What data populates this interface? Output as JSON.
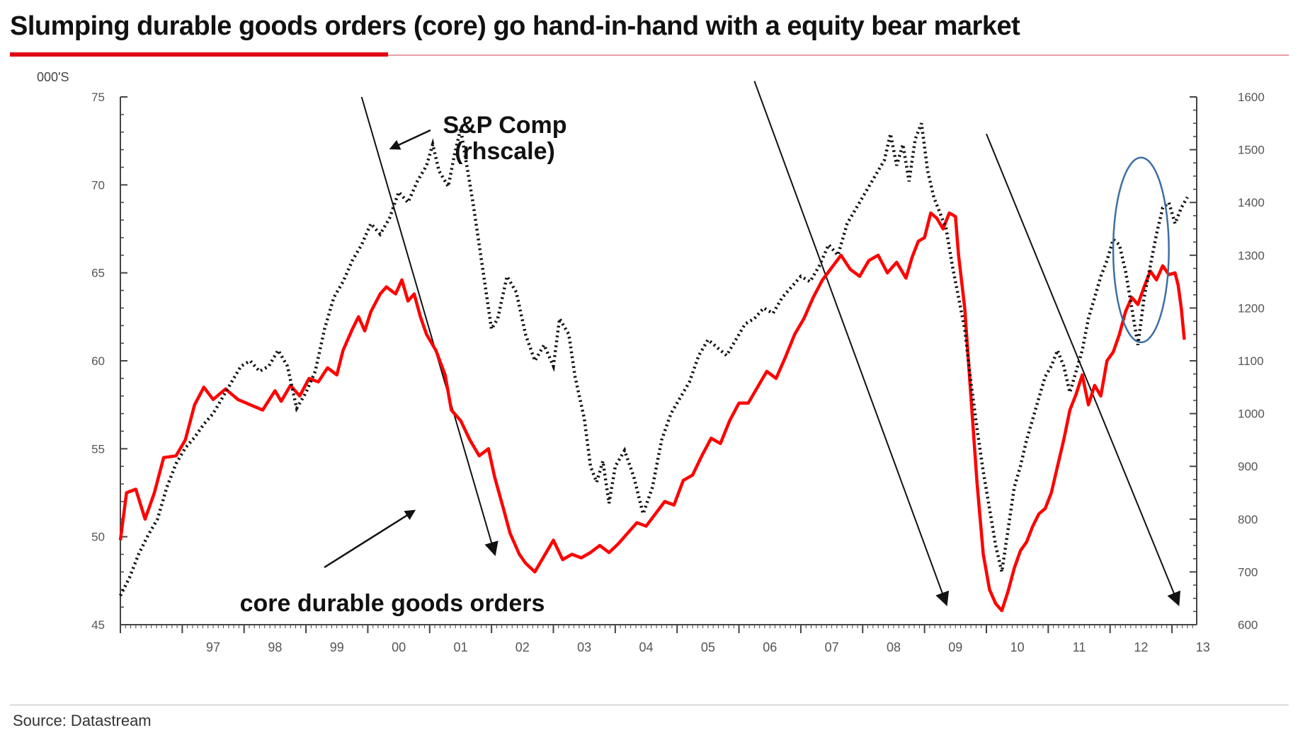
{
  "title": "Slumping durable goods orders (core) go hand-in-hand with a equity bear market",
  "source": "Source: Datastream",
  "colors": {
    "core_durable_goods": "#ff0000",
    "sp_comp": "#111111",
    "highlight_ellipse": "#3d6fa3",
    "title_rule": "#e30613"
  },
  "chart_data": {
    "type": "line",
    "left_axis": {
      "unit_label": "000'S",
      "range": [
        45,
        75
      ],
      "ticks": [
        "75",
        "70",
        "65",
        "60",
        "55",
        "50",
        "45"
      ]
    },
    "right_axis": {
      "range": [
        600,
        1600
      ],
      "ticks": [
        "1600",
        "1500",
        "1400",
        "1300",
        "1200",
        "1100",
        "1000",
        "900",
        "800",
        "700",
        "600"
      ]
    },
    "x_axis": {
      "range": [
        1996.0,
        2013.4
      ],
      "ticks": [
        "97",
        "98",
        "99",
        "00",
        "01",
        "02",
        "03",
        "04",
        "05",
        "06",
        "07",
        "08",
        "09",
        "10",
        "11",
        "12",
        "13"
      ],
      "tick_years": [
        1997,
        1998,
        1999,
        2000,
        2001,
        2002,
        2003,
        2004,
        2005,
        2006,
        2007,
        2008,
        2009,
        2010,
        2011,
        2012,
        2013
      ]
    },
    "grid": false,
    "series": [
      {
        "name": "core durable goods orders",
        "axis": "left",
        "style": "solid",
        "points": [
          [
            1996.0,
            49.8
          ],
          [
            1996.1,
            52.5
          ],
          [
            1996.25,
            52.7
          ],
          [
            1996.4,
            51.0
          ],
          [
            1996.55,
            52.5
          ],
          [
            1996.7,
            54.5
          ],
          [
            1996.9,
            54.6
          ],
          [
            1997.05,
            55.5
          ],
          [
            1997.2,
            57.5
          ],
          [
            1997.35,
            58.5
          ],
          [
            1997.5,
            57.8
          ],
          [
            1997.7,
            58.4
          ],
          [
            1997.9,
            57.8
          ],
          [
            1998.1,
            57.5
          ],
          [
            1998.3,
            57.2
          ],
          [
            1998.5,
            58.3
          ],
          [
            1998.6,
            57.7
          ],
          [
            1998.75,
            58.6
          ],
          [
            1998.9,
            58.0
          ],
          [
            1999.05,
            59.0
          ],
          [
            1999.2,
            58.8
          ],
          [
            1999.35,
            59.6
          ],
          [
            1999.5,
            59.2
          ],
          [
            1999.6,
            60.6
          ],
          [
            1999.75,
            61.8
          ],
          [
            1999.85,
            62.5
          ],
          [
            1999.95,
            61.7
          ],
          [
            2000.05,
            62.8
          ],
          [
            2000.2,
            63.8
          ],
          [
            2000.3,
            64.2
          ],
          [
            2000.45,
            63.8
          ],
          [
            2000.55,
            64.6
          ],
          [
            2000.65,
            63.4
          ],
          [
            2000.75,
            63.8
          ],
          [
            2000.85,
            62.5
          ],
          [
            2000.95,
            61.5
          ],
          [
            2001.1,
            60.6
          ],
          [
            2001.25,
            59.2
          ],
          [
            2001.35,
            57.2
          ],
          [
            2001.5,
            56.6
          ],
          [
            2001.65,
            55.5
          ],
          [
            2001.8,
            54.6
          ],
          [
            2001.95,
            55.0
          ],
          [
            2002.05,
            53.4
          ],
          [
            2002.2,
            51.5
          ],
          [
            2002.3,
            50.2
          ],
          [
            2002.45,
            49.0
          ],
          [
            2002.55,
            48.5
          ],
          [
            2002.7,
            48.0
          ],
          [
            2002.85,
            48.9
          ],
          [
            2003.0,
            49.8
          ],
          [
            2003.15,
            48.7
          ],
          [
            2003.3,
            49.0
          ],
          [
            2003.45,
            48.8
          ],
          [
            2003.6,
            49.1
          ],
          [
            2003.75,
            49.5
          ],
          [
            2003.9,
            49.1
          ],
          [
            2004.05,
            49.6
          ],
          [
            2004.2,
            50.2
          ],
          [
            2004.35,
            50.8
          ],
          [
            2004.5,
            50.6
          ],
          [
            2004.65,
            51.3
          ],
          [
            2004.8,
            52.0
          ],
          [
            2004.95,
            51.8
          ],
          [
            2005.1,
            53.2
          ],
          [
            2005.25,
            53.5
          ],
          [
            2005.4,
            54.6
          ],
          [
            2005.55,
            55.6
          ],
          [
            2005.7,
            55.3
          ],
          [
            2005.85,
            56.6
          ],
          [
            2006.0,
            57.6
          ],
          [
            2006.15,
            57.6
          ],
          [
            2006.3,
            58.5
          ],
          [
            2006.45,
            59.4
          ],
          [
            2006.6,
            59.0
          ],
          [
            2006.75,
            60.2
          ],
          [
            2006.9,
            61.5
          ],
          [
            2007.05,
            62.4
          ],
          [
            2007.2,
            63.6
          ],
          [
            2007.35,
            64.6
          ],
          [
            2007.5,
            65.3
          ],
          [
            2007.65,
            66.0
          ],
          [
            2007.8,
            65.2
          ],
          [
            2007.95,
            64.8
          ],
          [
            2008.1,
            65.7
          ],
          [
            2008.25,
            66.0
          ],
          [
            2008.4,
            65.0
          ],
          [
            2008.55,
            65.6
          ],
          [
            2008.7,
            64.7
          ],
          [
            2008.8,
            65.9
          ],
          [
            2008.9,
            66.8
          ],
          [
            2009.0,
            67.0
          ],
          [
            2009.1,
            68.4
          ],
          [
            2009.2,
            68.1
          ],
          [
            2009.3,
            67.5
          ],
          [
            2009.4,
            68.4
          ],
          [
            2009.5,
            68.2
          ],
          [
            2009.55,
            66.0
          ],
          [
            2009.65,
            63.0
          ],
          [
            2009.75,
            58.0
          ],
          [
            2009.85,
            53.0
          ],
          [
            2009.95,
            49.0
          ],
          [
            2010.05,
            47.0
          ],
          [
            2010.15,
            46.2
          ],
          [
            2010.25,
            45.8
          ],
          [
            2010.35,
            46.9
          ],
          [
            2010.45,
            48.2
          ],
          [
            2010.55,
            49.2
          ],
          [
            2010.65,
            49.7
          ],
          [
            2010.75,
            50.6
          ],
          [
            2010.85,
            51.3
          ],
          [
            2010.95,
            51.6
          ],
          [
            2011.05,
            52.5
          ],
          [
            2011.15,
            54.0
          ],
          [
            2011.25,
            55.5
          ],
          [
            2011.35,
            57.2
          ],
          [
            2011.45,
            58.1
          ],
          [
            2011.55,
            59.2
          ],
          [
            2011.65,
            57.5
          ],
          [
            2011.75,
            58.6
          ],
          [
            2011.85,
            58.0
          ],
          [
            2011.95,
            60.0
          ],
          [
            2012.05,
            60.5
          ],
          [
            2012.15,
            61.5
          ],
          [
            2012.25,
            62.8
          ],
          [
            2012.35,
            63.6
          ],
          [
            2012.45,
            63.2
          ],
          [
            2012.55,
            64.2
          ],
          [
            2012.65,
            65.1
          ],
          [
            2012.75,
            64.6
          ],
          [
            2012.85,
            65.4
          ],
          [
            2012.95,
            64.9
          ],
          [
            2013.05,
            65.0
          ],
          [
            2013.1,
            64.3
          ],
          [
            2013.15,
            63.0
          ],
          [
            2013.2,
            61.2
          ]
        ]
      },
      {
        "name": "S&P Comp (rhscale)",
        "axis": "right",
        "style": "dotted",
        "points": [
          [
            1996.0,
            655
          ],
          [
            1996.15,
            690
          ],
          [
            1996.3,
            735
          ],
          [
            1996.45,
            770
          ],
          [
            1996.6,
            800
          ],
          [
            1996.75,
            860
          ],
          [
            1996.9,
            905
          ],
          [
            1997.05,
            935
          ],
          [
            1997.2,
            955
          ],
          [
            1997.35,
            980
          ],
          [
            1997.5,
            1000
          ],
          [
            1997.65,
            1030
          ],
          [
            1997.8,
            1060
          ],
          [
            1997.95,
            1090
          ],
          [
            1998.1,
            1100
          ],
          [
            1998.25,
            1080
          ],
          [
            1998.4,
            1090
          ],
          [
            1998.55,
            1120
          ],
          [
            1998.7,
            1090
          ],
          [
            1998.85,
            1010
          ],
          [
            1999.0,
            1040
          ],
          [
            1999.15,
            1080
          ],
          [
            1999.3,
            1160
          ],
          [
            1999.45,
            1220
          ],
          [
            1999.6,
            1250
          ],
          [
            1999.75,
            1290
          ],
          [
            1999.9,
            1320
          ],
          [
            2000.05,
            1360
          ],
          [
            2000.2,
            1340
          ],
          [
            2000.35,
            1370
          ],
          [
            2000.5,
            1420
          ],
          [
            2000.65,
            1400
          ],
          [
            2000.8,
            1440
          ],
          [
            2000.95,
            1470
          ],
          [
            2001.05,
            1510
          ],
          [
            2001.15,
            1460
          ],
          [
            2001.3,
            1430
          ],
          [
            2001.4,
            1490
          ],
          [
            2001.5,
            1540
          ],
          [
            2001.6,
            1470
          ],
          [
            2001.7,
            1400
          ],
          [
            2001.8,
            1320
          ],
          [
            2001.9,
            1240
          ],
          [
            2002.0,
            1160
          ],
          [
            2002.1,
            1180
          ],
          [
            2002.25,
            1260
          ],
          [
            2002.4,
            1230
          ],
          [
            2002.55,
            1150
          ],
          [
            2002.7,
            1100
          ],
          [
            2002.85,
            1130
          ],
          [
            2003.0,
            1090
          ],
          [
            2003.1,
            1180
          ],
          [
            2003.25,
            1150
          ],
          [
            2003.35,
            1070
          ],
          [
            2003.5,
            990
          ],
          [
            2003.6,
            900
          ],
          [
            2003.7,
            870
          ],
          [
            2003.8,
            910
          ],
          [
            2003.9,
            830
          ],
          [
            2004.0,
            900
          ],
          [
            2004.15,
            930
          ],
          [
            2004.3,
            880
          ],
          [
            2004.45,
            810
          ],
          [
            2004.6,
            860
          ],
          [
            2004.75,
            950
          ],
          [
            2004.9,
            1000
          ],
          [
            2005.05,
            1030
          ],
          [
            2005.2,
            1060
          ],
          [
            2005.35,
            1110
          ],
          [
            2005.5,
            1140
          ],
          [
            2005.65,
            1125
          ],
          [
            2005.8,
            1110
          ],
          [
            2005.95,
            1140
          ],
          [
            2006.1,
            1170
          ],
          [
            2006.25,
            1180
          ],
          [
            2006.4,
            1200
          ],
          [
            2006.55,
            1190
          ],
          [
            2006.7,
            1220
          ],
          [
            2006.85,
            1240
          ],
          [
            2007.0,
            1260
          ],
          [
            2007.15,
            1250
          ],
          [
            2007.3,
            1280
          ],
          [
            2007.45,
            1320
          ],
          [
            2007.6,
            1300
          ],
          [
            2007.75,
            1360
          ],
          [
            2007.9,
            1390
          ],
          [
            2008.05,
            1420
          ],
          [
            2008.2,
            1450
          ],
          [
            2008.35,
            1480
          ],
          [
            2008.45,
            1530
          ],
          [
            2008.55,
            1470
          ],
          [
            2008.65,
            1510
          ],
          [
            2008.75,
            1440
          ],
          [
            2008.85,
            1520
          ],
          [
            2008.95,
            1550
          ],
          [
            2009.05,
            1460
          ],
          [
            2009.15,
            1410
          ],
          [
            2009.25,
            1380
          ],
          [
            2009.35,
            1350
          ],
          [
            2009.45,
            1280
          ],
          [
            2009.55,
            1220
          ],
          [
            2009.65,
            1160
          ],
          [
            2009.75,
            1060
          ],
          [
            2009.85,
            970
          ],
          [
            2009.95,
            890
          ],
          [
            2010.05,
            820
          ],
          [
            2010.15,
            750
          ],
          [
            2010.25,
            700
          ],
          [
            2010.35,
            780
          ],
          [
            2010.45,
            860
          ],
          [
            2010.55,
            900
          ],
          [
            2010.65,
            950
          ],
          [
            2010.75,
            990
          ],
          [
            2010.85,
            1030
          ],
          [
            2010.95,
            1070
          ],
          [
            2011.05,
            1090
          ],
          [
            2011.15,
            1120
          ],
          [
            2011.25,
            1090
          ],
          [
            2011.35,
            1040
          ],
          [
            2011.45,
            1080
          ],
          [
            2011.55,
            1120
          ],
          [
            2011.65,
            1180
          ],
          [
            2011.75,
            1220
          ],
          [
            2011.85,
            1260
          ],
          [
            2011.95,
            1290
          ],
          [
            2012.05,
            1330
          ],
          [
            2012.15,
            1320
          ],
          [
            2012.25,
            1270
          ],
          [
            2012.35,
            1200
          ],
          [
            2012.45,
            1130
          ],
          [
            2012.55,
            1220
          ],
          [
            2012.65,
            1280
          ],
          [
            2012.75,
            1340
          ],
          [
            2012.85,
            1390
          ],
          [
            2012.95,
            1400
          ],
          [
            2013.05,
            1360
          ],
          [
            2013.15,
            1390
          ],
          [
            2013.25,
            1410
          ]
        ]
      }
    ],
    "annotations": [
      {
        "text": "S&P Comp\n(rhscale)",
        "points_to_series": "S&P Comp (rhscale)"
      },
      {
        "text": "core durable goods orders",
        "points_to_series": "core durable goods orders"
      }
    ],
    "trend_lines": [
      {
        "from": [
          1999.9,
          1600
        ],
        "to": [
          2002.05,
          735
        ],
        "axis": "right",
        "arrowhead": true
      },
      {
        "from": [
          2006.25,
          1630
        ],
        "to": [
          2009.35,
          640
        ],
        "axis": "right",
        "arrowhead": true
      },
      {
        "from": [
          2010.0,
          1530
        ],
        "to": [
          2013.1,
          640
        ],
        "axis": "right",
        "arrowhead": true
      }
    ],
    "highlight_ellipse": {
      "center": [
        2012.5,
        1310
      ],
      "rx_years": 0.45,
      "ry_value": 175,
      "axis": "right"
    }
  }
}
